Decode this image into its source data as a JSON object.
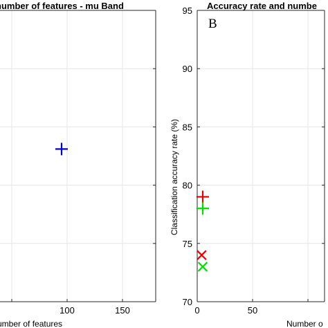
{
  "chart_data": [
    {
      "type": "scatter",
      "title": "number of features - mu Band",
      "xlabel": "umber of features",
      "ylabel": "",
      "xlim": [
        0,
        180
      ],
      "ylim": [
        70,
        95
      ],
      "x_ticks": [
        100,
        150
      ],
      "y_ticks": [],
      "grid": true,
      "series": [
        {
          "marker": "plus",
          "color": "#0000cc",
          "points": [
            {
              "x": 95,
              "y": 83.1
            }
          ]
        }
      ]
    },
    {
      "type": "scatter",
      "title": "Accuracy rate and numbe",
      "panel_label": "B",
      "xlabel": "Number o",
      "ylabel": "Classification accuracy rate (%)",
      "xlim": [
        0,
        115
      ],
      "ylim": [
        70,
        95
      ],
      "x_ticks": [
        0,
        50
      ],
      "y_ticks": [
        70,
        75,
        80,
        85,
        90,
        95
      ],
      "grid": true,
      "series": [
        {
          "marker": "plus",
          "color": "#e60000",
          "points": [
            {
              "x": 5,
              "y": 79
            }
          ]
        },
        {
          "marker": "plus",
          "color": "#00dd00",
          "points": [
            {
              "x": 5,
              "y": 78
            }
          ]
        },
        {
          "marker": "x",
          "color": "#e60000",
          "points": [
            {
              "x": 4,
              "y": 74
            }
          ]
        },
        {
          "marker": "x",
          "color": "#00dd00",
          "points": [
            {
              "x": 5,
              "y": 73
            }
          ]
        }
      ]
    }
  ]
}
